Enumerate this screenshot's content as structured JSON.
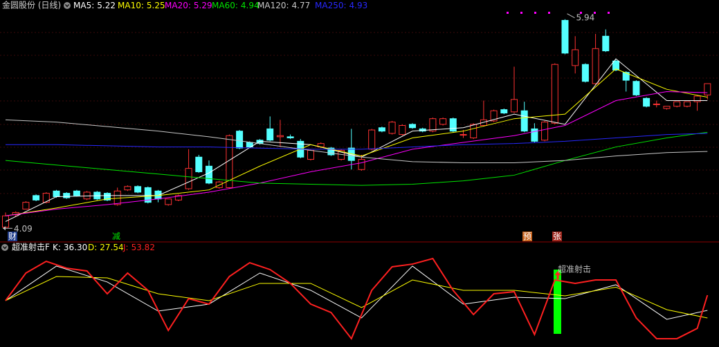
{
  "chart_data": [
    {
      "type": "candlestick",
      "title": "金圆股份 (日线)",
      "open": [
        4.1,
        4.21,
        4.26,
        4.38,
        4.32,
        4.42,
        4.4,
        4.42,
        4.35,
        4.41,
        4.4,
        4.3,
        4.43,
        4.46,
        4.45,
        4.42,
        4.3,
        4.34,
        4.44,
        4.72,
        4.64,
        4.45,
        4.45,
        4.95,
        4.85,
        4.87,
        4.97,
        4.9,
        4.9,
        4.86,
        4.7,
        4.81,
        4.8,
        4.7,
        4.8,
        4.61,
        4.79,
        4.98,
        4.93,
        4.92,
        5.01,
        4.97,
        4.95,
        5.01,
        5.06,
        4.92,
        4.89,
        5.0,
        5.04,
        5.14,
        5.12,
        5.13,
        4.97,
        4.87,
        5.02,
        5.93,
        5.53,
        5.54,
        5.37,
        5.79,
        5.57,
        5.47,
        5.39,
        5.24,
        5.19,
        5.15,
        5.17,
        5.17,
        5.21,
        5.27
      ],
      "high": [
        4.23,
        4.24,
        4.33,
        4.39,
        4.41,
        4.43,
        4.41,
        4.43,
        4.42,
        4.42,
        4.41,
        4.45,
        4.47,
        4.47,
        4.46,
        4.43,
        4.35,
        4.39,
        4.79,
        4.74,
        4.69,
        4.51,
        4.92,
        4.96,
        4.86,
        4.88,
        5.08,
        5.05,
        4.92,
        4.88,
        4.79,
        4.85,
        4.81,
        4.79,
        4.97,
        4.74,
        4.97,
        4.99,
        5.04,
        5.01,
        5.02,
        4.98,
        5.07,
        5.07,
        5.07,
        4.96,
        5.02,
        5.22,
        5.14,
        5.15,
        5.52,
        5.21,
        5.02,
        5.04,
        5.55,
        5.94,
        5.79,
        5.55,
        5.81,
        5.85,
        5.58,
        5.48,
        5.4,
        5.25,
        5.22,
        5.17,
        5.21,
        5.21,
        5.27,
        5.37
      ],
      "low": [
        4.09,
        4.19,
        4.26,
        4.33,
        4.31,
        4.36,
        4.35,
        4.37,
        4.34,
        4.34,
        4.33,
        4.29,
        4.42,
        4.4,
        4.31,
        4.32,
        4.29,
        4.33,
        4.43,
        4.58,
        4.48,
        4.44,
        4.44,
        4.79,
        4.8,
        4.83,
        4.86,
        4.81,
        4.88,
        4.71,
        4.69,
        4.8,
        4.73,
        4.69,
        4.61,
        4.6,
        4.78,
        4.94,
        4.92,
        4.91,
        4.97,
        4.94,
        4.94,
        5.0,
        4.94,
        4.89,
        4.88,
        4.99,
        5.03,
        5.1,
        5.11,
        4.94,
        4.85,
        4.86,
        5.01,
        5.63,
        5.46,
        5.38,
        5.36,
        5.65,
        5.48,
        5.3,
        5.26,
        5.16,
        5.16,
        5.14,
        5.16,
        5.16,
        5.13,
        5.23
      ],
      "close": [
        4.2,
        4.23,
        4.32,
        4.34,
        4.4,
        4.37,
        4.36,
        4.38,
        4.41,
        4.35,
        4.34,
        4.42,
        4.46,
        4.41,
        4.32,
        4.35,
        4.35,
        4.38,
        4.62,
        4.59,
        4.49,
        4.5,
        4.91,
        4.8,
        4.81,
        4.84,
        4.87,
        4.91,
        4.89,
        4.72,
        4.78,
        4.84,
        4.74,
        4.78,
        4.69,
        4.7,
        4.96,
        4.95,
        5.03,
        5.0,
        4.98,
        4.95,
        5.06,
        5.06,
        4.95,
        4.92,
        5.01,
        5.05,
        5.13,
        5.11,
        5.23,
        4.95,
        4.86,
        5.03,
        5.54,
        5.64,
        5.67,
        5.39,
        5.68,
        5.66,
        5.49,
        5.4,
        5.27,
        5.17,
        5.19,
        5.17,
        5.21,
        5.21,
        5.26,
        5.37
      ],
      "up_color": "#ff3232",
      "down_color": "#54ffff",
      "ylim": [
        4,
        6
      ],
      "series": [
        {
          "name": "MA5:",
          "color": "#ffffff",
          "x": [
            0,
            5,
            10,
            15,
            20,
            25,
            30,
            35,
            40,
            45,
            50,
            55,
            60,
            65,
            69
          ],
          "values": [
            4.15,
            4.37,
            4.38,
            4.38,
            4.58,
            4.86,
            4.83,
            4.72,
            4.95,
            4.98,
            5.1,
            5.01,
            5.59,
            5.22,
            5.22
          ]
        },
        {
          "name": "MA10:",
          "color": "#ffff00",
          "x": [
            0,
            5,
            10,
            15,
            20,
            25,
            30,
            35,
            40,
            45,
            50,
            55,
            60,
            65,
            69
          ],
          "values": [
            4.2,
            4.27,
            4.35,
            4.38,
            4.43,
            4.64,
            4.83,
            4.73,
            4.89,
            4.95,
            5.06,
            5.1,
            5.5,
            5.32,
            5.25
          ]
        },
        {
          "name": "MA20:",
          "color": "#ff00ff",
          "x": [
            0,
            5,
            10,
            15,
            20,
            25,
            30,
            35,
            40,
            45,
            50,
            55,
            60,
            65,
            69
          ],
          "values": [
            4.2,
            4.26,
            4.3,
            4.35,
            4.41,
            4.49,
            4.59,
            4.67,
            4.79,
            4.85,
            4.91,
            5.0,
            5.22,
            5.3,
            5.29
          ]
        },
        {
          "name": "MA60:",
          "color": "#00e600",
          "x": [
            0,
            5,
            10,
            15,
            20,
            25,
            30,
            35,
            40,
            45,
            50,
            55,
            60,
            65,
            69
          ],
          "values": [
            4.69,
            4.65,
            4.61,
            4.57,
            4.53,
            4.49,
            4.48,
            4.47,
            4.48,
            4.51,
            4.56,
            4.69,
            4.81,
            4.89,
            4.94
          ]
        },
        {
          "name": "MA120:",
          "color": "#c8c8c8",
          "x": [
            0,
            5,
            10,
            15,
            20,
            25,
            30,
            35,
            40,
            45,
            50,
            55,
            60,
            65,
            69
          ],
          "values": [
            5.05,
            5.03,
            4.99,
            4.95,
            4.9,
            4.84,
            4.78,
            4.72,
            4.68,
            4.67,
            4.67,
            4.69,
            4.73,
            4.76,
            4.77
          ]
        },
        {
          "name": "MA250:",
          "color": "#2828ff",
          "x": [
            0,
            5,
            10,
            15,
            20,
            25,
            30,
            35,
            40,
            45,
            50,
            55,
            60,
            65,
            69
          ],
          "values": [
            4.83,
            4.83,
            4.82,
            4.81,
            4.81,
            4.8,
            4.79,
            4.79,
            4.81,
            4.83,
            4.84,
            4.86,
            4.89,
            4.92,
            4.93
          ]
        }
      ],
      "max_label": 5.94,
      "min_label": 4.09,
      "markers": [
        "财",
        "减",
        "预",
        "张"
      ]
    },
    {
      "type": "line",
      "title": "超准射击F",
      "ylim": [
        0,
        100
      ],
      "series": [
        {
          "name": "K:",
          "color": "#ffffff",
          "x": [
            0,
            5,
            10,
            15,
            20,
            25,
            30,
            35,
            40,
            45,
            50,
            55,
            60,
            65,
            69
          ],
          "values": [
            47.5,
            87.3,
            69.0,
            35.5,
            43.5,
            79.3,
            59.4,
            27.6,
            87.3,
            43.5,
            51.4,
            49.8,
            65.8,
            26.0,
            36.3
          ],
          "value_labels": [
            null,
            null,
            null,
            null,
            null,
            null,
            null,
            null,
            null,
            null,
            null,
            null,
            null,
            null,
            "36.30"
          ]
        },
        {
          "name": "D:",
          "color": "#ffff00",
          "x": [
            0,
            5,
            10,
            15,
            20,
            25,
            30,
            35,
            40,
            45,
            50,
            55,
            60,
            65,
            69
          ],
          "values": [
            47.5,
            75.3,
            73.7,
            55.4,
            47.5,
            67.4,
            67.4,
            39.5,
            71.3,
            59.4,
            59.4,
            53.0,
            63.0,
            37.1,
            27.54
          ]
        },
        {
          "name": "J:",
          "color": "#ff2020",
          "x": [
            0,
            2,
            4,
            6,
            8,
            10,
            12,
            14,
            16,
            18,
            20,
            22,
            24,
            26,
            28,
            30,
            32,
            34,
            36,
            38,
            40,
            42,
            44,
            46,
            48,
            50,
            52,
            54,
            56,
            58,
            60,
            62,
            64,
            66,
            68,
            69
          ],
          "values": [
            47.5,
            79.3,
            92.8,
            84.9,
            81.7,
            55.4,
            79.3,
            59.4,
            13.2,
            49.8,
            43.5,
            75.3,
            91.2,
            83.3,
            67.4,
            43.5,
            33.9,
            3.7,
            59.4,
            86.5,
            89.6,
            96.0,
            59.4,
            31.5,
            55.4,
            57.8,
            8.5,
            71.3,
            67.4,
            71.3,
            71.3,
            27.6,
            3.7,
            3.7,
            15.6,
            53.82
          ]
        }
      ],
      "signal": "超准射击"
    }
  ]
}
